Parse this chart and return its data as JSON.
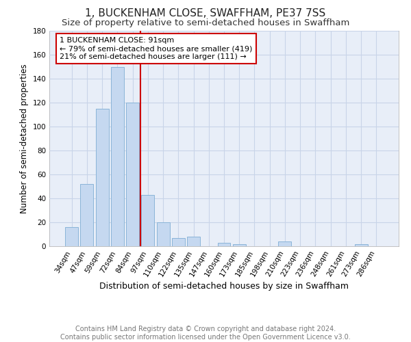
{
  "title": "1, BUCKENHAM CLOSE, SWAFFHAM, PE37 7SS",
  "subtitle": "Size of property relative to semi-detached houses in Swaffham",
  "xlabel": "Distribution of semi-detached houses by size in Swaffham",
  "ylabel": "Number of semi-detached properties",
  "footer_line1": "Contains HM Land Registry data © Crown copyright and database right 2024.",
  "footer_line2": "Contains public sector information licensed under the Open Government Licence v3.0.",
  "categories": [
    "34sqm",
    "47sqm",
    "59sqm",
    "72sqm",
    "84sqm",
    "97sqm",
    "110sqm",
    "122sqm",
    "135sqm",
    "147sqm",
    "160sqm",
    "173sqm",
    "185sqm",
    "198sqm",
    "210sqm",
    "223sqm",
    "236sqm",
    "248sqm",
    "261sqm",
    "273sqm",
    "286sqm"
  ],
  "values": [
    16,
    52,
    115,
    150,
    120,
    43,
    20,
    7,
    8,
    0,
    3,
    2,
    0,
    0,
    4,
    0,
    0,
    0,
    0,
    2,
    0
  ],
  "bar_color": "#c5d8f0",
  "bar_edge_color": "#8ab4d8",
  "property_line_x": 4.5,
  "annotation_text_line1": "1 BUCKENHAM CLOSE: 91sqm",
  "annotation_text_line2": "← 79% of semi-detached houses are smaller (419)",
  "annotation_text_line3": "21% of semi-detached houses are larger (111) →",
  "annotation_box_color": "#ffffff",
  "annotation_box_edge_color": "#cc0000",
  "vline_color": "#cc0000",
  "ylim": [
    0,
    180
  ],
  "yticks": [
    0,
    20,
    40,
    60,
    80,
    100,
    120,
    140,
    160,
    180
  ],
  "grid_color": "#c8d4e8",
  "background_color": "#e8eef8",
  "title_fontsize": 11,
  "subtitle_fontsize": 9.5,
  "xlabel_fontsize": 9,
  "ylabel_fontsize": 8.5,
  "tick_fontsize": 7.5,
  "annotation_fontsize": 8,
  "footer_fontsize": 7
}
